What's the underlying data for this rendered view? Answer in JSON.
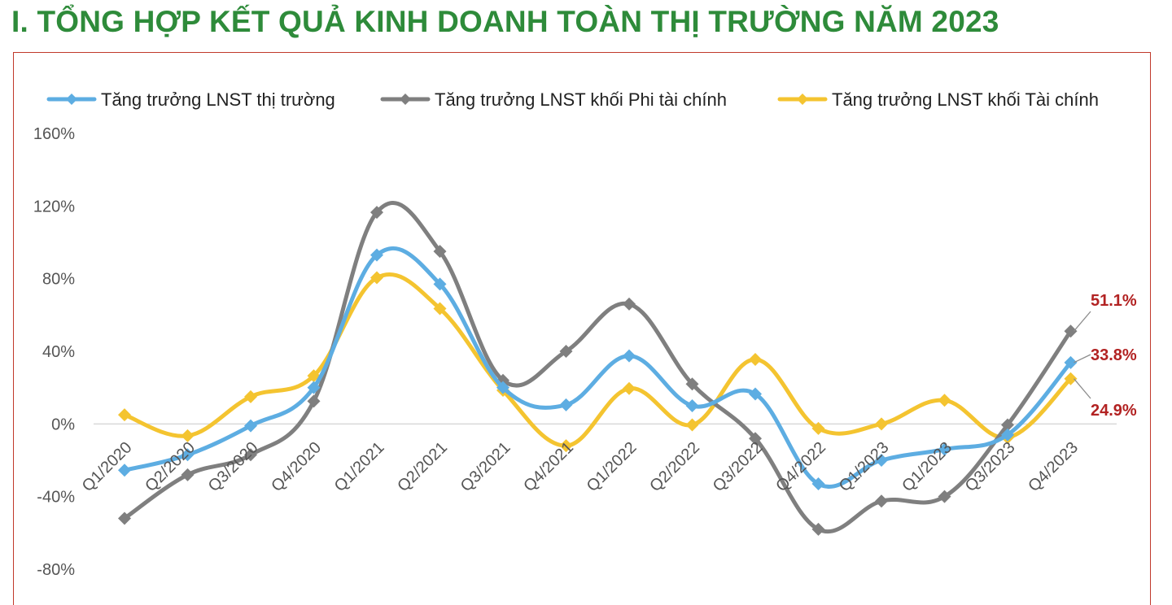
{
  "page": {
    "heading": "I. TỔNG HỢP KẾT QUẢ KINH DOANH TOÀN THỊ TRƯỜNG NĂM 2023"
  },
  "chart_data": {
    "type": "line",
    "smooth": true,
    "categories": [
      "Q1/2020",
      "Q2/2020",
      "Q3/2020",
      "Q4/2020",
      "Q1/2021",
      "Q2/2021",
      "Q3/2021",
      "Q4/2021",
      "Q1/2022",
      "Q2/2022",
      "Q3/2022",
      "Q4/2022",
      "Q1/2023",
      "Q1/2023",
      "Q3/2023",
      "Q4/2023"
    ],
    "ylim": [
      -80,
      160
    ],
    "yticks": [
      -80,
      -40,
      0,
      40,
      80,
      120,
      160
    ],
    "ytick_labels": [
      "-80%",
      "-40%",
      "0%",
      "40%",
      "80%",
      "120%",
      "160%"
    ],
    "grid": false,
    "zero_line": true,
    "legend_position": "top",
    "series": [
      {
        "name": "Tăng trưởng LNST thị trường",
        "color": "#5dade2",
        "values": [
          -25.5,
          -17,
          -1,
          20,
          93,
          77,
          20,
          10.5,
          37.5,
          10,
          16.5,
          -33,
          -20,
          -14,
          -6,
          33.8
        ]
      },
      {
        "name": "Tăng trưởng LNST khối Phi tài chính",
        "color": "#7f7f7f",
        "values": [
          -52,
          -28,
          -17,
          12.5,
          116.5,
          95,
          24,
          40,
          66,
          22,
          -8,
          -58,
          -42.5,
          -40,
          -0.5,
          51.1
        ]
      },
      {
        "name": "Tăng trưởng LNST khối Tài chính",
        "color": "#f4c430",
        "values": [
          5,
          -6.5,
          15,
          26.5,
          80.5,
          63.5,
          18.5,
          -12,
          19.5,
          -0.5,
          35.5,
          -2.5,
          0,
          13,
          -7.5,
          24.9
        ]
      }
    ],
    "annotations": [
      {
        "text": "51.1%",
        "series": 1
      },
      {
        "text": "33.8%",
        "series": 0
      },
      {
        "text": "24.9%",
        "series": 2
      }
    ]
  }
}
